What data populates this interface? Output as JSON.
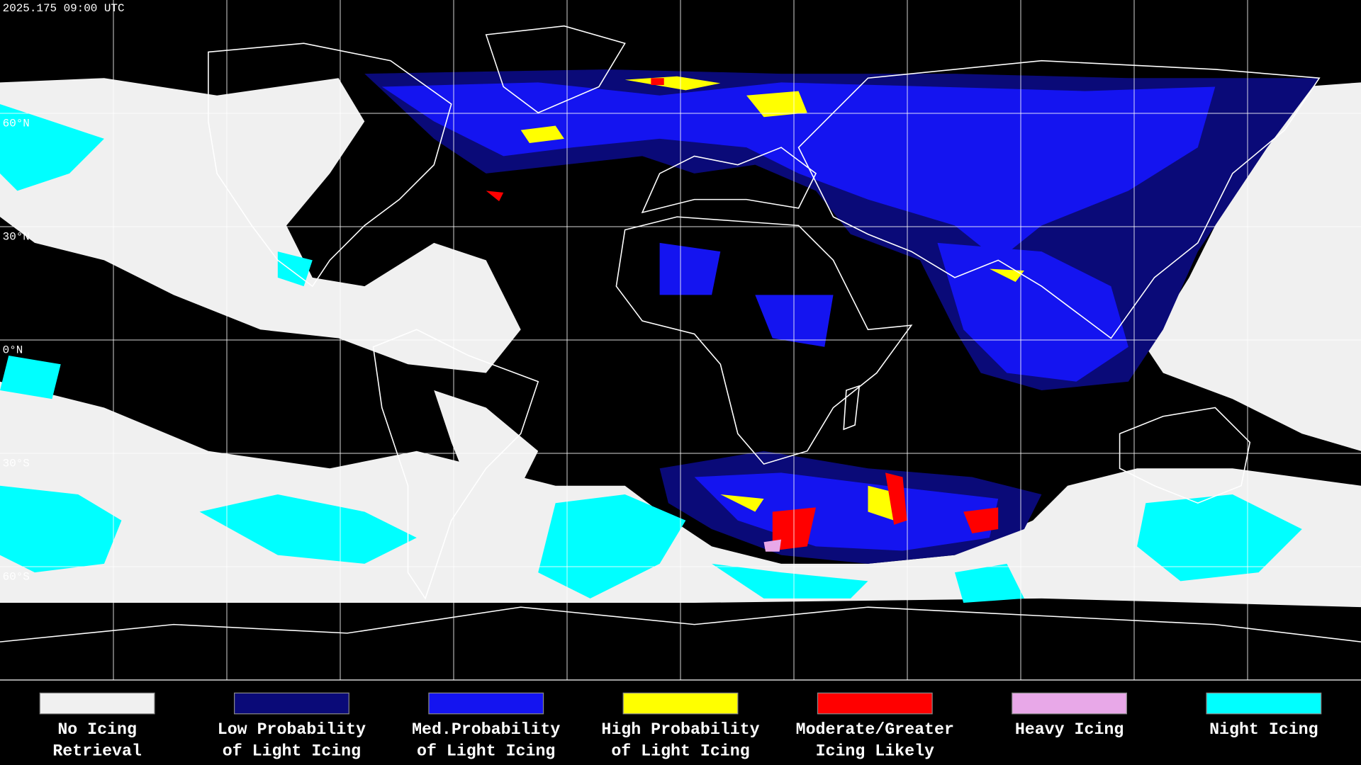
{
  "map": {
    "timestamp": "2025.175 09:00 UTC",
    "latitude_lines": [
      {
        "value": 60,
        "label": "60°N"
      },
      {
        "value": 30,
        "label": "30°N"
      },
      {
        "value": 0,
        "label": "0°N"
      },
      {
        "value": -30,
        "label": "30°S"
      },
      {
        "value": -60,
        "label": "60°S"
      }
    ],
    "legend": [
      {
        "lines": [
          "No Icing",
          "Retrieval"
        ],
        "color": "#f0f0f0"
      },
      {
        "lines": [
          "Low Probability",
          "of Light Icing"
        ],
        "color": "#0a0a78"
      },
      {
        "lines": [
          "Med.Probability",
          "of Light Icing"
        ],
        "color": "#1414f0"
      },
      {
        "lines": [
          "High Probability",
          "of Light Icing"
        ],
        "color": "#ffff00"
      },
      {
        "lines": [
          "Moderate/Greater",
          "Icing Likely"
        ],
        "color": "#ff0000"
      },
      {
        "lines": [
          "Heavy Icing"
        ],
        "color": "#e8a8e8"
      },
      {
        "lines": [
          "Night Icing"
        ],
        "color": "#00ffff"
      }
    ]
  }
}
